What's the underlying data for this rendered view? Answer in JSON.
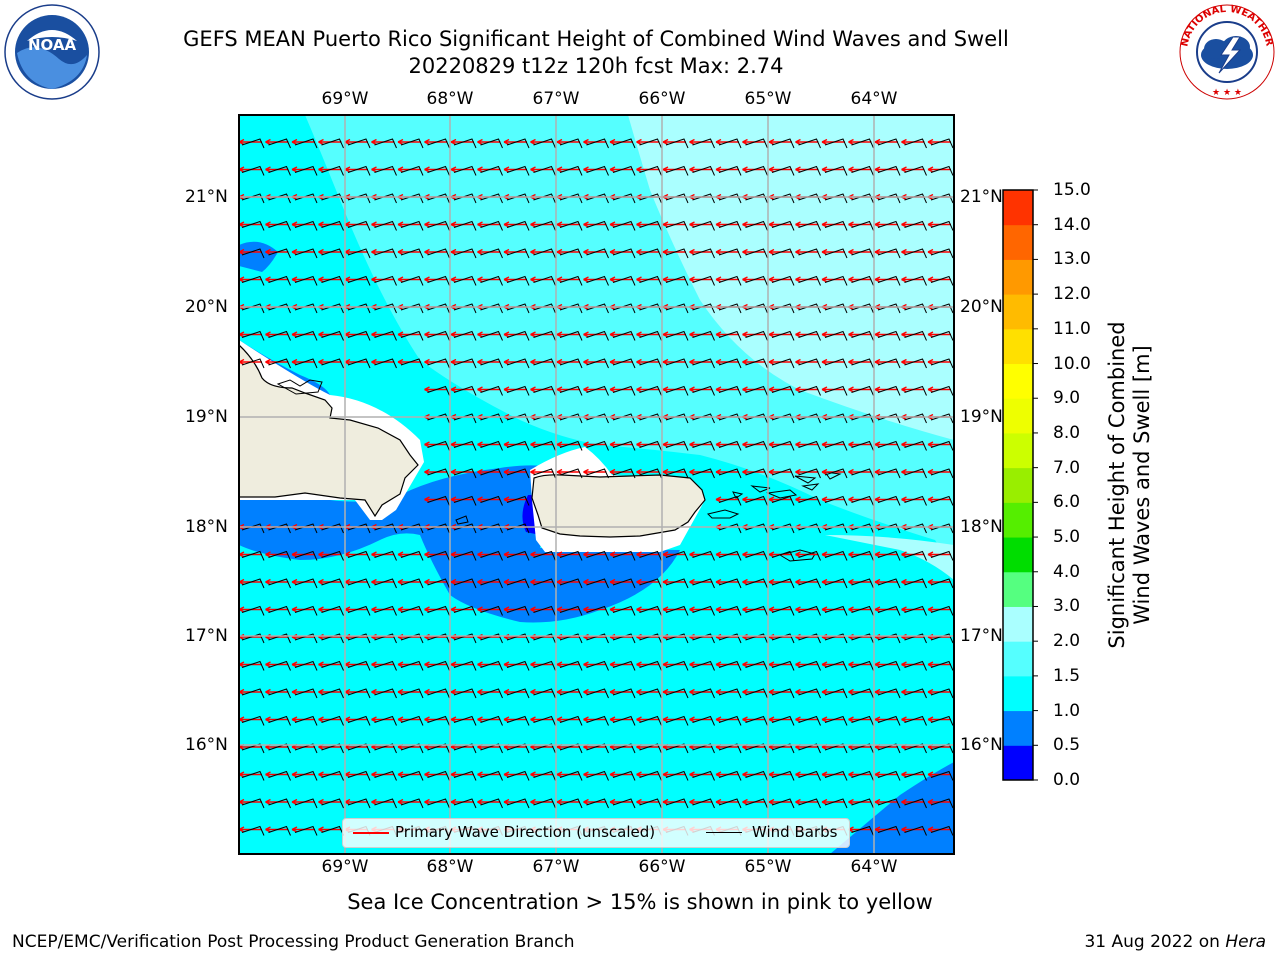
{
  "header": {
    "title_line1": "GEFS MEAN Puerto Rico Significant Height of Combined Wind Waves and Swell",
    "title_line2": "20220829 t12z 120h fcst   Max: 2.74"
  },
  "logos": {
    "noaa": {
      "text": "NOAA",
      "ring_text": "NATIONAL OCEANIC AND ATMOSPHERIC ADMINISTRATION · U.S. DEPARTMENT OF COMMERCE"
    },
    "nws": {
      "ring_text": "NATIONAL WEATHER SERVICE"
    }
  },
  "map": {
    "longitude_labels": [
      "69°W",
      "68°W",
      "67°W",
      "66°W",
      "65°W",
      "64°W"
    ],
    "latitude_labels": [
      "21°N",
      "20°N",
      "19°N",
      "18°N",
      "17°N",
      "16°N"
    ],
    "colors": {
      "ocean_low": "#0080ff",
      "ocean_mid": "#00ffff",
      "ocean_high": "#aaffff",
      "deep": "#0000ff",
      "land": "#efedde",
      "wave_arrow": "#ff0000",
      "barb": "#000000",
      "grid": "#b0b0b0"
    }
  },
  "legend": {
    "primary_wave_label": "Primary Wave Direction (unscaled)",
    "wind_barbs_label": "Wind Barbs"
  },
  "colorbar": {
    "label_line1": "Significant Height of Combined",
    "label_line2": "Wind Waves and Swell [m]",
    "ticks": [
      "15.0",
      "14.0",
      "13.0",
      "12.0",
      "11.0",
      "10.0",
      "9.0",
      "8.0",
      "7.0",
      "6.0",
      "5.0",
      "4.0",
      "3.0",
      "2.0",
      "1.5",
      "1.0",
      "0.5",
      "0.0"
    ],
    "band_colors": [
      "#0000ff",
      "#0080ff",
      "#00ffff",
      "#55ffff",
      "#aaffff",
      "#55ff80",
      "#00dd00",
      "#55ee00",
      "#99ee00",
      "#ccff00",
      "#eeff00",
      "#ffff00",
      "#ffe000",
      "#ffbb00",
      "#ff9900",
      "#ff6600",
      "#ff3300"
    ]
  },
  "footer": {
    "sea_ice_note": "Sea Ice Concentration > 15% is shown in pink to yellow",
    "branch": "NCEP/EMC/Verification Post Processing Product Generation Branch",
    "date_prefix": "31 Aug 2022 on ",
    "machine": "Hera"
  }
}
